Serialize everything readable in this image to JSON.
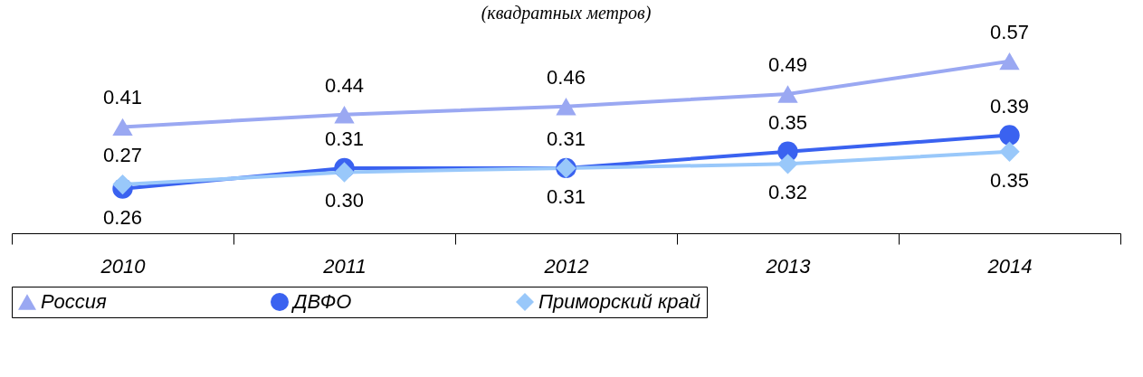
{
  "chart_data": {
    "type": "line",
    "title": "(квадратных  метров)",
    "categories": [
      "2010",
      "2011",
      "2012",
      "2013",
      "2014"
    ],
    "series": [
      {
        "name": "Россия",
        "color": "#9aa8f2",
        "marker": "triangle",
        "values": [
          0.41,
          0.44,
          0.46,
          0.49,
          0.57
        ],
        "value_labels": [
          "0.41",
          "0.44",
          "0.46",
          "0.49",
          "0.57"
        ]
      },
      {
        "name": "ДВФО",
        "color": "#3a62f0",
        "marker": "circle",
        "values": [
          0.26,
          0.31,
          0.31,
          0.35,
          0.39
        ],
        "value_labels": [
          "0.26",
          "0.31",
          "0.31",
          "0.35",
          "0.39"
        ]
      },
      {
        "name": "Приморский край",
        "color": "#99c8fa",
        "marker": "diamond",
        "values": [
          0.27,
          0.3,
          0.31,
          0.32,
          0.35
        ],
        "value_labels": [
          "0.27",
          "0.30",
          "0.31",
          "0.32",
          "0.35"
        ]
      }
    ],
    "legend": "bottom",
    "grid": false,
    "tick_labels": "x",
    "line_style": "solid"
  }
}
